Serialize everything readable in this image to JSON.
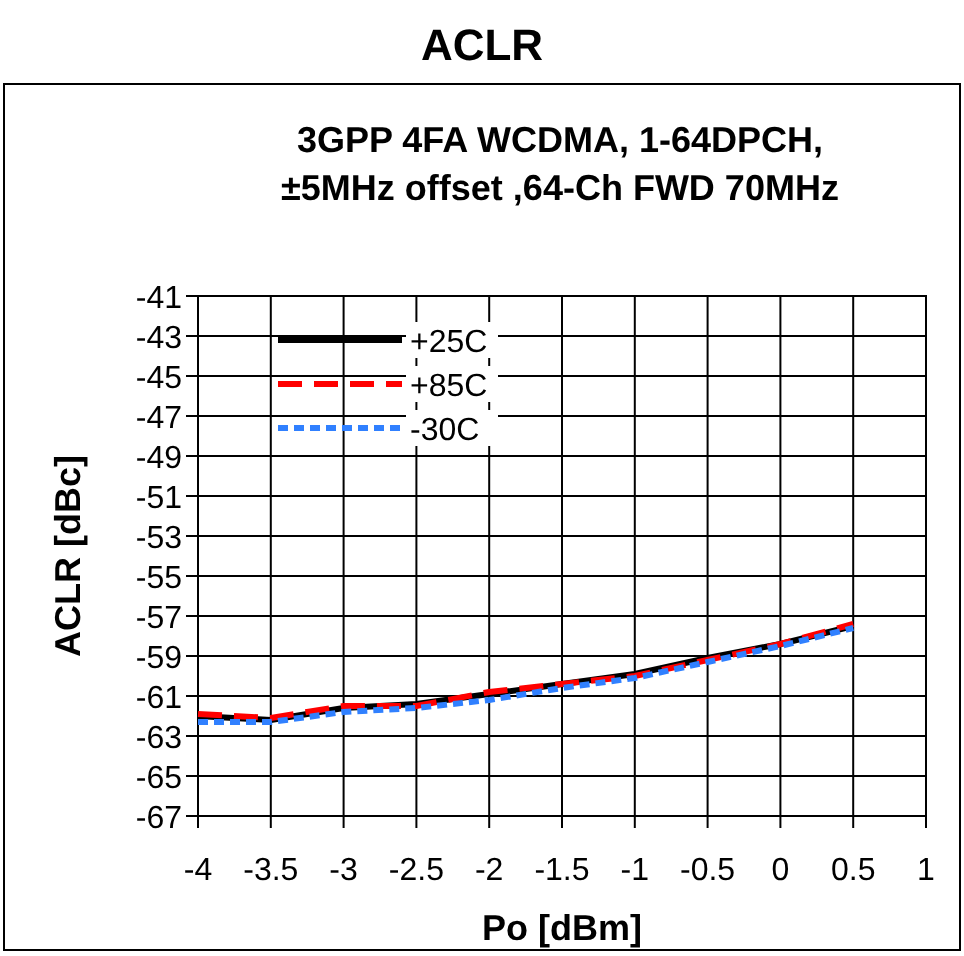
{
  "chart_data": {
    "type": "line",
    "title": "ACLR",
    "subtitle": "3GPP 4FA  WCDMA, 1-64DPCH,\n±5MHz offset ,64-Ch FWD 70MHz",
    "xlabel": "Po [dBm]",
    "ylabel": "ACLR [dBc]",
    "x": [
      -4,
      -3.5,
      -3,
      -2.5,
      -2,
      -1.5,
      -1,
      -0.5,
      0,
      0.5
    ],
    "series": [
      {
        "name": "+25C",
        "color": "#000000",
        "line_style": "solid",
        "values": [
          -62.0,
          -62.2,
          -61.6,
          -61.4,
          -60.9,
          -60.4,
          -59.9,
          -59.1,
          -58.4,
          -57.5
        ]
      },
      {
        "name": "+85C",
        "color": "#ff0000",
        "line_style": "dashed",
        "values": [
          -61.9,
          -62.1,
          -61.5,
          -61.5,
          -60.8,
          -60.4,
          -60.0,
          -59.2,
          -58.4,
          -57.4
        ]
      },
      {
        "name": "-30C",
        "color": "#3080ff",
        "line_style": "dotted",
        "values": [
          -62.3,
          -62.3,
          -61.8,
          -61.6,
          -61.2,
          -60.6,
          -60.1,
          -59.3,
          -58.5,
          -57.6
        ]
      }
    ],
    "xlim": [
      -4,
      1
    ],
    "xticks": [
      -4,
      -3.5,
      -3,
      -2.5,
      -2,
      -1.5,
      -1,
      -0.5,
      0,
      0.5,
      1
    ],
    "ylim": [
      -67,
      -41
    ],
    "yticks": [
      -67,
      -65,
      -63,
      -61,
      -59,
      -57,
      -55,
      -53,
      -51,
      -49,
      -47,
      -45,
      -43,
      -41
    ],
    "grid": true,
    "legend": "top left"
  }
}
